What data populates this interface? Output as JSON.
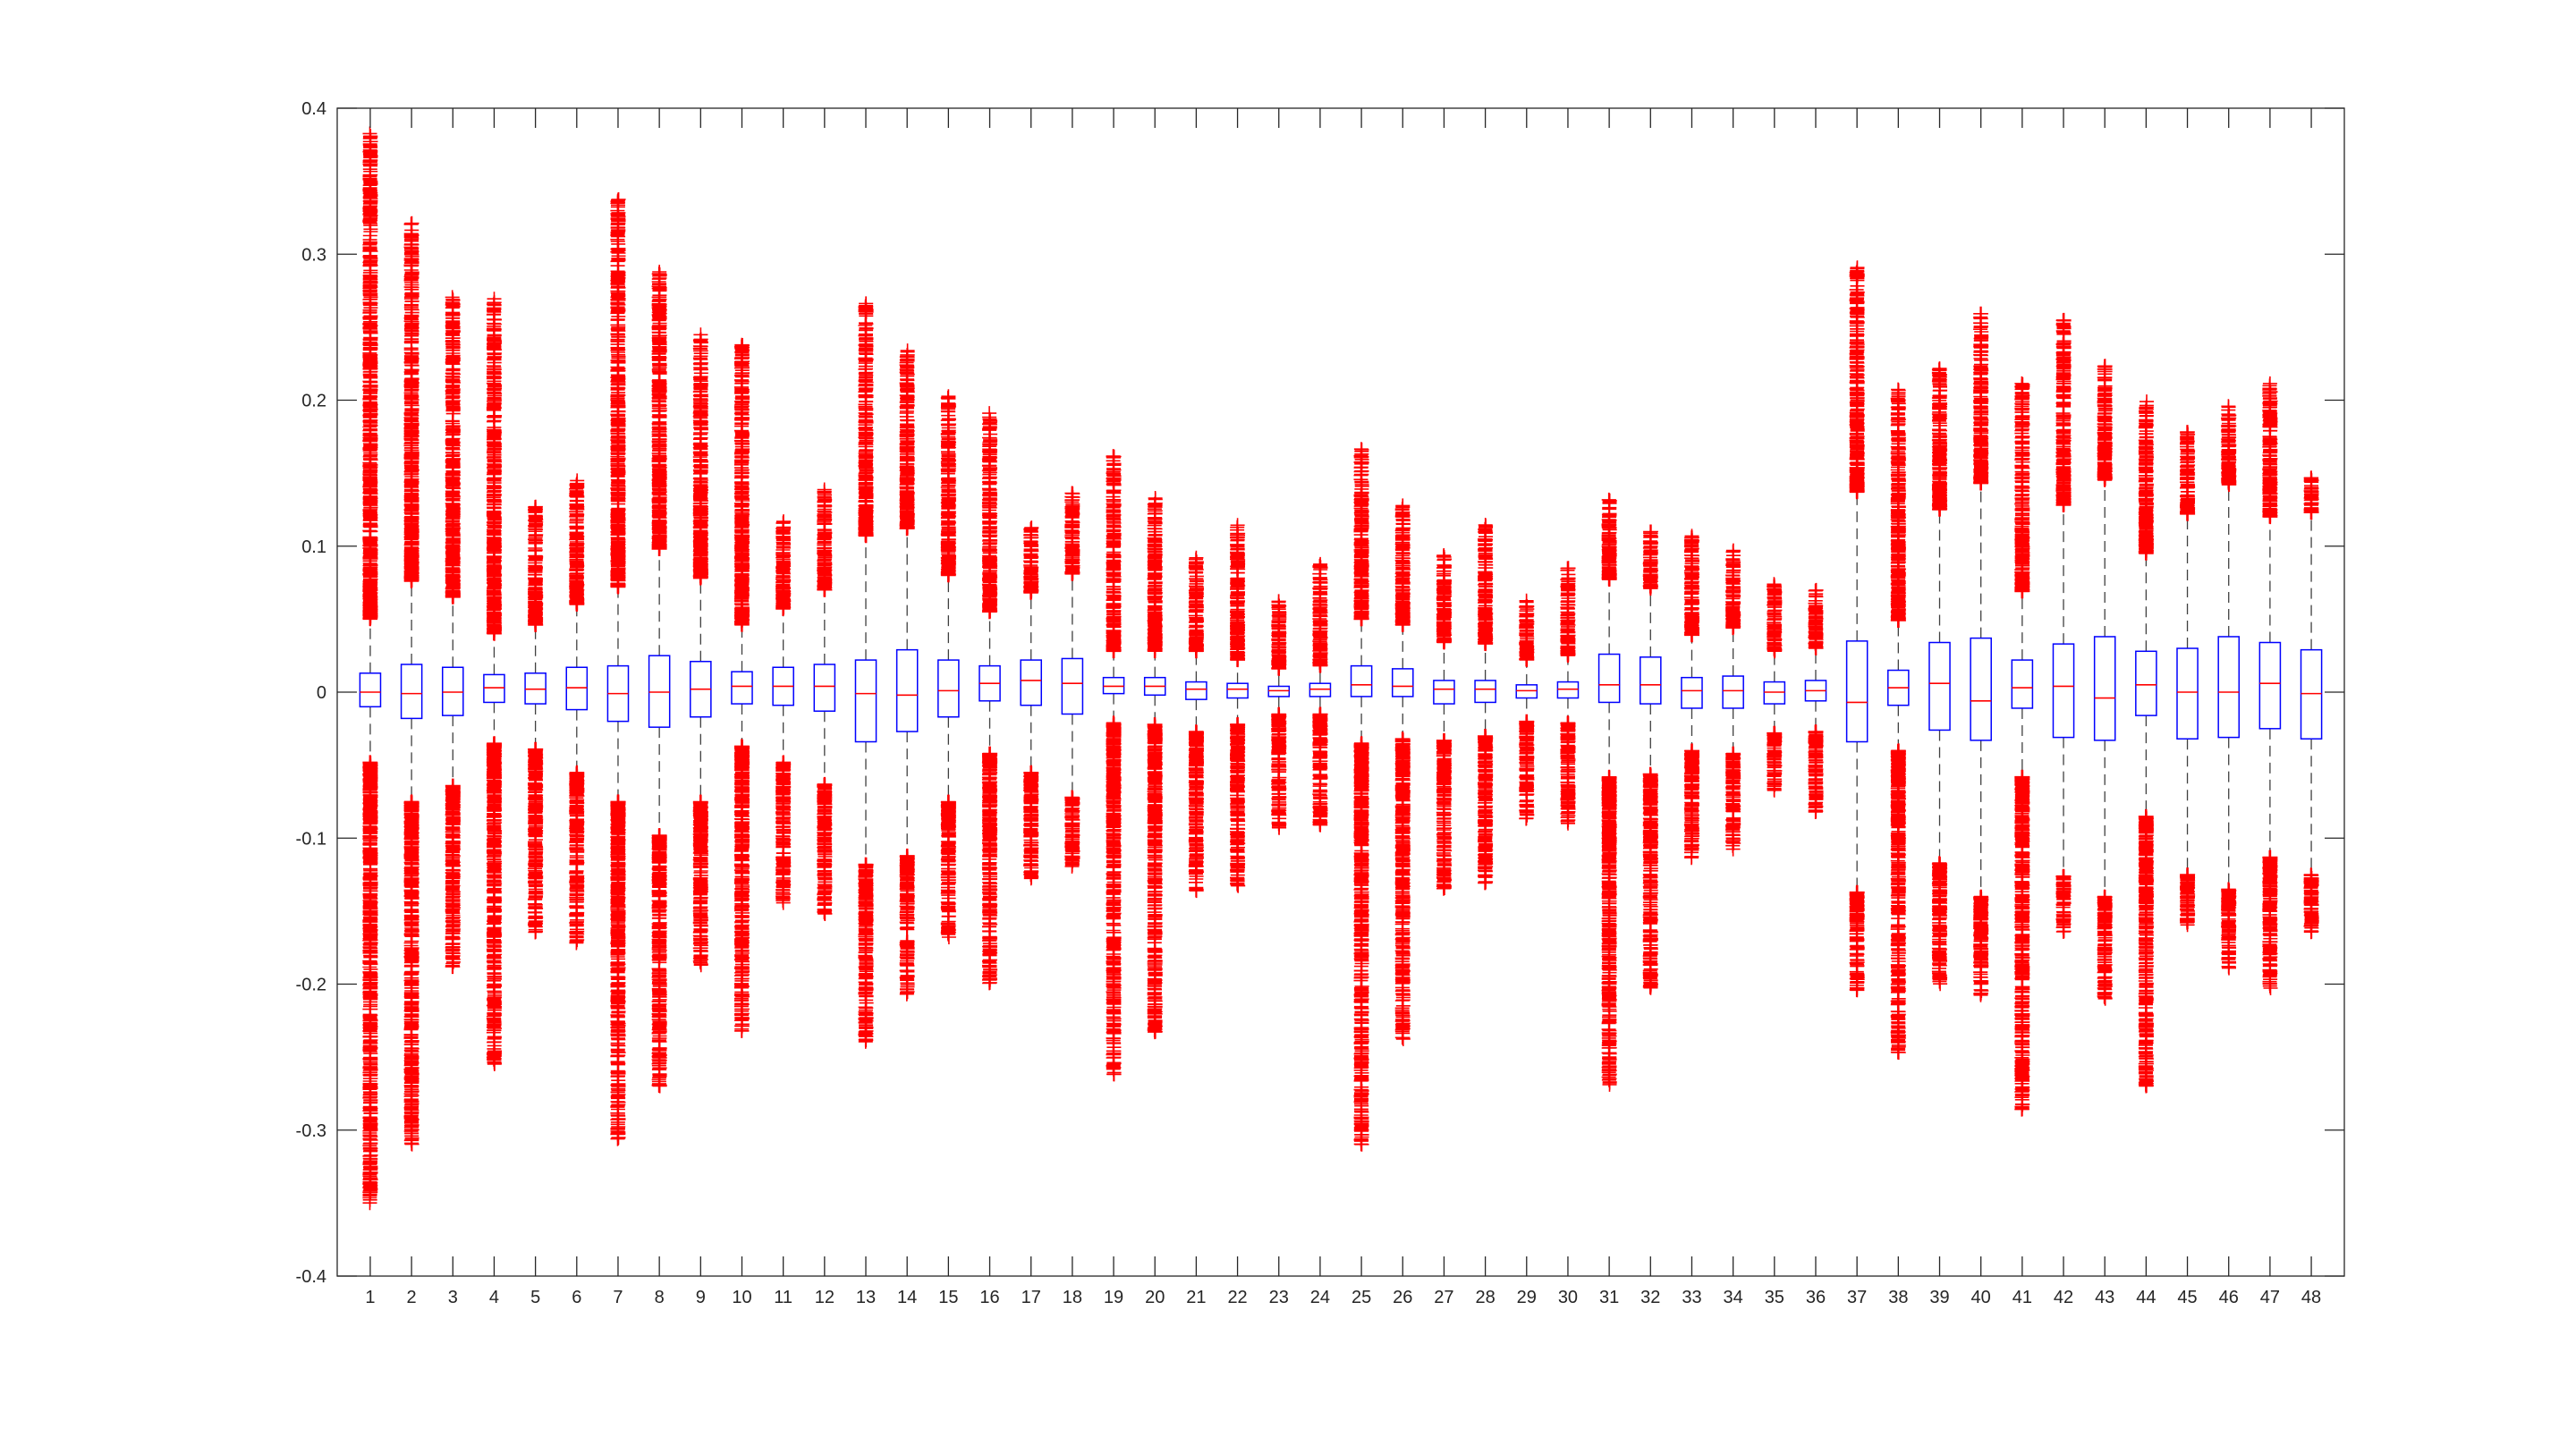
{
  "chart_data": {
    "type": "boxplot",
    "title": "",
    "xlabel": "",
    "ylabel": "",
    "ylim": [
      -0.4,
      0.4
    ],
    "yticks": [
      {
        "value": -0.4,
        "label": "-0.4"
      },
      {
        "value": -0.3,
        "label": "-0.3"
      },
      {
        "value": -0.2,
        "label": "-0.2"
      },
      {
        "value": -0.1,
        "label": "-0.1"
      },
      {
        "value": 0,
        "label": "0"
      },
      {
        "value": 0.1,
        "label": "0.1"
      },
      {
        "value": 0.2,
        "label": "0.2"
      },
      {
        "value": 0.3,
        "label": "0.3"
      },
      {
        "value": 0.4,
        "label": "0.4"
      }
    ],
    "categories": [
      "1",
      "2",
      "3",
      "4",
      "5",
      "6",
      "7",
      "8",
      "9",
      "10",
      "11",
      "12",
      "13",
      "14",
      "15",
      "16",
      "17",
      "18",
      "19",
      "20",
      "21",
      "22",
      "23",
      "24",
      "25",
      "26",
      "27",
      "28",
      "29",
      "30",
      "31",
      "32",
      "33",
      "34",
      "35",
      "36",
      "37",
      "38",
      "39",
      "40",
      "41",
      "42",
      "43",
      "44",
      "45",
      "46",
      "47",
      "48"
    ],
    "grid": false,
    "legend": "none",
    "colors": {
      "box": "#0000ff",
      "median": "#ff0000",
      "whisker": "#000000",
      "outlier": "#ff0000",
      "axes": "#262626"
    },
    "outlier_marker": "+",
    "boxes": [
      {
        "q1": -0.01,
        "median": 0.0,
        "q3": 0.013,
        "whisker_low": -0.048,
        "whisker_high": 0.05,
        "outliers_low": [
          -0.048,
          -0.35
        ],
        "outliers_high": [
          0.05,
          0.383
        ]
      },
      {
        "q1": -0.018,
        "median": -0.001,
        "q3": 0.019,
        "whisker_low": -0.075,
        "whisker_high": 0.076,
        "outliers_low": [
          -0.075,
          -0.31
        ],
        "outliers_high": [
          0.076,
          0.322
        ]
      },
      {
        "q1": -0.016,
        "median": 0.0,
        "q3": 0.017,
        "whisker_low": -0.064,
        "whisker_high": 0.065,
        "outliers_low": [
          -0.064,
          -0.19
        ],
        "outliers_high": [
          0.065,
          0.272
        ]
      },
      {
        "q1": -0.007,
        "median": 0.003,
        "q3": 0.012,
        "whisker_low": -0.035,
        "whisker_high": 0.04,
        "outliers_low": [
          -0.035,
          -0.255
        ],
        "outliers_high": [
          0.04,
          0.271
        ]
      },
      {
        "q1": -0.008,
        "median": 0.002,
        "q3": 0.013,
        "whisker_low": -0.039,
        "whisker_high": 0.046,
        "outliers_low": [
          -0.039,
          -0.165
        ],
        "outliers_high": [
          0.046,
          0.128
        ]
      },
      {
        "q1": -0.012,
        "median": 0.003,
        "q3": 0.017,
        "whisker_low": -0.055,
        "whisker_high": 0.06,
        "outliers_low": [
          -0.055,
          -0.172
        ],
        "outliers_high": [
          0.06,
          0.145
        ]
      },
      {
        "q1": -0.02,
        "median": -0.001,
        "q3": 0.018,
        "whisker_low": -0.075,
        "whisker_high": 0.072,
        "outliers_low": [
          -0.075,
          -0.307
        ],
        "outliers_high": [
          0.072,
          0.338
        ]
      },
      {
        "q1": -0.024,
        "median": 0.0,
        "q3": 0.025,
        "whisker_low": -0.098,
        "whisker_high": 0.098,
        "outliers_low": [
          -0.098,
          -0.27
        ],
        "outliers_high": [
          0.098,
          0.289
        ]
      },
      {
        "q1": -0.017,
        "median": 0.002,
        "q3": 0.021,
        "whisker_low": -0.075,
        "whisker_high": 0.078,
        "outliers_low": [
          -0.075,
          -0.187
        ],
        "outliers_high": [
          0.078,
          0.245
        ]
      },
      {
        "q1": -0.008,
        "median": 0.004,
        "q3": 0.014,
        "whisker_low": -0.037,
        "whisker_high": 0.046,
        "outliers_low": [
          -0.037,
          -0.235
        ],
        "outliers_high": [
          0.046,
          0.238
        ]
      },
      {
        "q1": -0.009,
        "median": 0.004,
        "q3": 0.017,
        "whisker_low": -0.048,
        "whisker_high": 0.057,
        "outliers_low": [
          -0.048,
          -0.145
        ],
        "outliers_high": [
          0.057,
          0.118
        ]
      },
      {
        "q1": -0.013,
        "median": 0.004,
        "q3": 0.019,
        "whisker_low": -0.063,
        "whisker_high": 0.07,
        "outliers_low": [
          -0.063,
          -0.152
        ],
        "outliers_high": [
          0.07,
          0.14
        ]
      },
      {
        "q1": -0.034,
        "median": -0.001,
        "q3": 0.022,
        "whisker_low": -0.118,
        "whisker_high": 0.107,
        "outliers_low": [
          -0.118,
          -0.24
        ],
        "outliers_high": [
          0.107,
          0.267
        ]
      },
      {
        "q1": -0.027,
        "median": -0.002,
        "q3": 0.029,
        "whisker_low": -0.112,
        "whisker_high": 0.112,
        "outliers_low": [
          -0.112,
          -0.207
        ],
        "outliers_high": [
          0.112,
          0.234
        ]
      },
      {
        "q1": -0.017,
        "median": 0.001,
        "q3": 0.022,
        "whisker_low": -0.075,
        "whisker_high": 0.08,
        "outliers_low": [
          -0.075,
          -0.168
        ],
        "outliers_high": [
          0.08,
          0.203
        ]
      },
      {
        "q1": -0.006,
        "median": 0.006,
        "q3": 0.018,
        "whisker_low": -0.042,
        "whisker_high": 0.055,
        "outliers_low": [
          -0.042,
          -0.2
        ],
        "outliers_high": [
          0.055,
          0.192
        ]
      },
      {
        "q1": -0.009,
        "median": 0.008,
        "q3": 0.022,
        "whisker_low": -0.055,
        "whisker_high": 0.068,
        "outliers_low": [
          -0.055,
          -0.128
        ],
        "outliers_high": [
          0.068,
          0.113
        ]
      },
      {
        "q1": -0.015,
        "median": 0.006,
        "q3": 0.023,
        "whisker_low": -0.072,
        "whisker_high": 0.081,
        "outliers_low": [
          -0.072,
          -0.12
        ],
        "outliers_high": [
          0.081,
          0.137
        ]
      },
      {
        "q1": -0.001,
        "median": 0.004,
        "q3": 0.01,
        "whisker_low": -0.021,
        "whisker_high": 0.028,
        "outliers_low": [
          -0.021,
          -0.262
        ],
        "outliers_high": [
          0.028,
          0.162
        ]
      },
      {
        "q1": -0.002,
        "median": 0.004,
        "q3": 0.01,
        "whisker_low": -0.022,
        "whisker_high": 0.028,
        "outliers_low": [
          -0.022,
          -0.233
        ],
        "outliers_high": [
          0.028,
          0.133
        ]
      },
      {
        "q1": -0.005,
        "median": 0.002,
        "q3": 0.007,
        "whisker_low": -0.027,
        "whisker_high": 0.028,
        "outliers_low": [
          -0.027,
          -0.138
        ],
        "outliers_high": [
          0.028,
          0.093
        ]
      },
      {
        "q1": -0.004,
        "median": 0.002,
        "q3": 0.006,
        "whisker_low": -0.022,
        "whisker_high": 0.022,
        "outliers_low": [
          -0.022,
          -0.133
        ],
        "outliers_high": [
          0.022,
          0.115
        ]
      },
      {
        "q1": -0.003,
        "median": 0.001,
        "q3": 0.004,
        "whisker_low": -0.015,
        "whisker_high": 0.016,
        "outliers_low": [
          -0.015,
          -0.093
        ],
        "outliers_high": [
          0.016,
          0.063
        ]
      },
      {
        "q1": -0.003,
        "median": 0.002,
        "q3": 0.006,
        "whisker_low": -0.015,
        "whisker_high": 0.018,
        "outliers_low": [
          -0.015,
          -0.092
        ],
        "outliers_high": [
          0.018,
          0.088
        ]
      },
      {
        "q1": -0.003,
        "median": 0.005,
        "q3": 0.018,
        "whisker_low": -0.035,
        "whisker_high": 0.05,
        "outliers_low": [
          -0.035,
          -0.31
        ],
        "outliers_high": [
          0.05,
          0.167
        ]
      },
      {
        "q1": -0.003,
        "median": 0.004,
        "q3": 0.016,
        "whisker_low": -0.032,
        "whisker_high": 0.046,
        "outliers_low": [
          -0.032,
          -0.238
        ],
        "outliers_high": [
          0.046,
          0.128
        ]
      },
      {
        "q1": -0.008,
        "median": 0.002,
        "q3": 0.008,
        "whisker_low": -0.033,
        "whisker_high": 0.034,
        "outliers_low": [
          -0.033,
          -0.135
        ],
        "outliers_high": [
          0.034,
          0.095
        ]
      },
      {
        "q1": -0.007,
        "median": 0.002,
        "q3": 0.008,
        "whisker_low": -0.03,
        "whisker_high": 0.033,
        "outliers_low": [
          -0.03,
          -0.132
        ],
        "outliers_high": [
          0.033,
          0.115
        ]
      },
      {
        "q1": -0.004,
        "median": 0.001,
        "q3": 0.005,
        "whisker_low": -0.02,
        "whisker_high": 0.022,
        "outliers_low": [
          -0.02,
          -0.087
        ],
        "outliers_high": [
          0.022,
          0.063
        ]
      },
      {
        "q1": -0.004,
        "median": 0.002,
        "q3": 0.007,
        "whisker_low": -0.021,
        "whisker_high": 0.025,
        "outliers_low": [
          -0.021,
          -0.09
        ],
        "outliers_high": [
          0.025,
          0.085
        ]
      },
      {
        "q1": -0.007,
        "median": 0.005,
        "q3": 0.026,
        "whisker_low": -0.058,
        "whisker_high": 0.077,
        "outliers_low": [
          -0.058,
          -0.269
        ],
        "outliers_high": [
          0.077,
          0.133
        ]
      },
      {
        "q1": -0.008,
        "median": 0.005,
        "q3": 0.024,
        "whisker_low": -0.056,
        "whisker_high": 0.071,
        "outliers_low": [
          -0.056,
          -0.203
        ],
        "outliers_high": [
          0.071,
          0.11
        ]
      },
      {
        "q1": -0.011,
        "median": 0.001,
        "q3": 0.01,
        "whisker_low": -0.04,
        "whisker_high": 0.039,
        "outliers_low": [
          -0.04,
          -0.115
        ],
        "outliers_high": [
          0.039,
          0.108
        ]
      },
      {
        "q1": -0.011,
        "median": 0.001,
        "q3": 0.011,
        "whisker_low": -0.042,
        "whisker_high": 0.044,
        "outliers_low": [
          -0.042,
          -0.108
        ],
        "outliers_high": [
          0.044,
          0.098
        ]
      },
      {
        "q1": -0.008,
        "median": 0.0,
        "q3": 0.007,
        "whisker_low": -0.028,
        "whisker_high": 0.028,
        "outliers_low": [
          -0.028,
          -0.068
        ],
        "outliers_high": [
          0.028,
          0.075
        ]
      },
      {
        "q1": -0.006,
        "median": 0.001,
        "q3": 0.008,
        "whisker_low": -0.027,
        "whisker_high": 0.03,
        "outliers_low": [
          -0.027,
          -0.083
        ],
        "outliers_high": [
          0.03,
          0.07
        ]
      },
      {
        "q1": -0.034,
        "median": -0.007,
        "q3": 0.035,
        "whisker_low": -0.137,
        "whisker_high": 0.137,
        "outliers_low": [
          -0.137,
          -0.205
        ],
        "outliers_high": [
          0.137,
          0.291
        ]
      },
      {
        "q1": -0.009,
        "median": 0.003,
        "q3": 0.015,
        "whisker_low": -0.04,
        "whisker_high": 0.049,
        "outliers_low": [
          -0.04,
          -0.247
        ],
        "outliers_high": [
          0.049,
          0.208
        ]
      },
      {
        "q1": -0.026,
        "median": 0.006,
        "q3": 0.034,
        "whisker_low": -0.117,
        "whisker_high": 0.125,
        "outliers_low": [
          -0.117,
          -0.2
        ],
        "outliers_high": [
          0.125,
          0.222
        ]
      },
      {
        "q1": -0.033,
        "median": -0.006,
        "q3": 0.037,
        "whisker_low": -0.14,
        "whisker_high": 0.143,
        "outliers_low": [
          -0.14,
          -0.209
        ],
        "outliers_high": [
          0.143,
          0.26
        ]
      },
      {
        "q1": -0.011,
        "median": 0.003,
        "q3": 0.022,
        "whisker_low": -0.058,
        "whisker_high": 0.069,
        "outliers_low": [
          -0.058,
          -0.287
        ],
        "outliers_high": [
          0.069,
          0.212
        ]
      },
      {
        "q1": -0.031,
        "median": 0.004,
        "q3": 0.033,
        "whisker_low": -0.126,
        "whisker_high": 0.128,
        "outliers_low": [
          -0.126,
          -0.165
        ],
        "outliers_high": [
          0.128,
          0.255
        ]
      },
      {
        "q1": -0.033,
        "median": -0.004,
        "q3": 0.038,
        "whisker_low": -0.14,
        "whisker_high": 0.145,
        "outliers_low": [
          -0.14,
          -0.21
        ],
        "outliers_high": [
          0.145,
          0.225
        ]
      },
      {
        "q1": -0.016,
        "median": 0.005,
        "q3": 0.028,
        "whisker_low": -0.085,
        "whisker_high": 0.095,
        "outliers_low": [
          -0.085,
          -0.27
        ],
        "outliers_high": [
          0.095,
          0.2
        ]
      },
      {
        "q1": -0.032,
        "median": 0.0,
        "q3": 0.03,
        "whisker_low": -0.125,
        "whisker_high": 0.122,
        "outliers_low": [
          -0.125,
          -0.16
        ],
        "outliers_high": [
          0.122,
          0.18
        ]
      },
      {
        "q1": -0.031,
        "median": 0.0,
        "q3": 0.038,
        "whisker_low": -0.135,
        "whisker_high": 0.142,
        "outliers_low": [
          -0.135,
          -0.19
        ],
        "outliers_high": [
          0.142,
          0.197
        ]
      },
      {
        "q1": -0.025,
        "median": 0.006,
        "q3": 0.034,
        "whisker_low": -0.113,
        "whisker_high": 0.12,
        "outliers_low": [
          -0.113,
          -0.203
        ],
        "outliers_high": [
          0.12,
          0.212
        ]
      },
      {
        "q1": -0.032,
        "median": -0.001,
        "q3": 0.029,
        "whisker_low": -0.125,
        "whisker_high": 0.123,
        "outliers_low": [
          -0.125,
          -0.165
        ],
        "outliers_high": [
          0.123,
          0.147
        ]
      }
    ]
  }
}
